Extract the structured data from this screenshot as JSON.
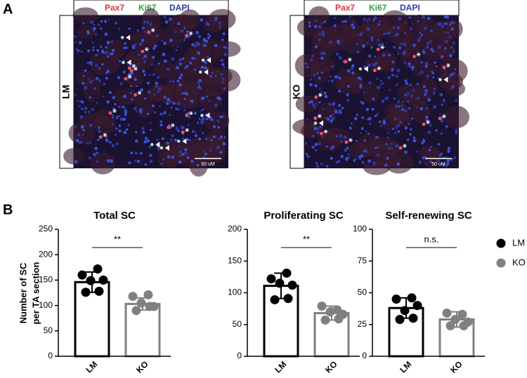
{
  "panel_a": {
    "label": "A",
    "stain_labels": [
      "Pax7",
      "Ki67",
      "DAPI"
    ],
    "stain_colors": [
      "#e8303a",
      "#2ea043",
      "#2c3da8"
    ],
    "images": [
      {
        "label": "LM",
        "scale_bar": "50 uM"
      },
      {
        "label": "KO",
        "scale_bar": "50 uM"
      }
    ]
  },
  "panel_b": {
    "label": "B",
    "y_label": [
      "Number of SC",
      "per TA section"
    ]
  },
  "chart_data": [
    {
      "type": "bar",
      "title": "Total SC",
      "categories": [
        "LM",
        "KO"
      ],
      "values": [
        146,
        103
      ],
      "errors": [
        20,
        12
      ],
      "points": [
        [
          160,
          172,
          149,
          150,
          126,
          128
        ],
        [
          118,
          121,
          105,
          98,
          90,
          98
        ]
      ],
      "colors": [
        "#000000",
        "#808080"
      ],
      "ylim": [
        0,
        250
      ],
      "yticks": [
        0,
        50,
        100,
        150,
        200,
        250
      ],
      "significance": "**"
    },
    {
      "type": "bar",
      "title": "Proliferating SC",
      "categories": [
        "LM",
        "KO"
      ],
      "values": [
        111,
        68
      ],
      "errors": [
        20,
        11
      ],
      "points": [
        [
          122,
          131,
          115,
          112,
          89,
          91
        ],
        [
          79,
          73,
          70,
          66,
          57,
          59
        ]
      ],
      "colors": [
        "#000000",
        "#808080"
      ],
      "ylim": [
        0,
        200
      ],
      "yticks": [
        0,
        50,
        100,
        150,
        200
      ],
      "significance": "**"
    },
    {
      "type": "bar",
      "title": "Self-renewing SC",
      "categories": [
        "LM",
        "KO"
      ],
      "values": [
        38,
        29
      ],
      "errors": [
        8,
        6
      ],
      "points": [
        [
          45,
          46,
          36,
          40,
          29,
          30
        ],
        [
          34,
          33,
          29,
          27,
          24,
          24
        ]
      ],
      "colors": [
        "#000000",
        "#808080"
      ],
      "ylim": [
        0,
        100
      ],
      "yticks": [
        0,
        25,
        50,
        75,
        100
      ],
      "significance": "n.s."
    }
  ]
}
